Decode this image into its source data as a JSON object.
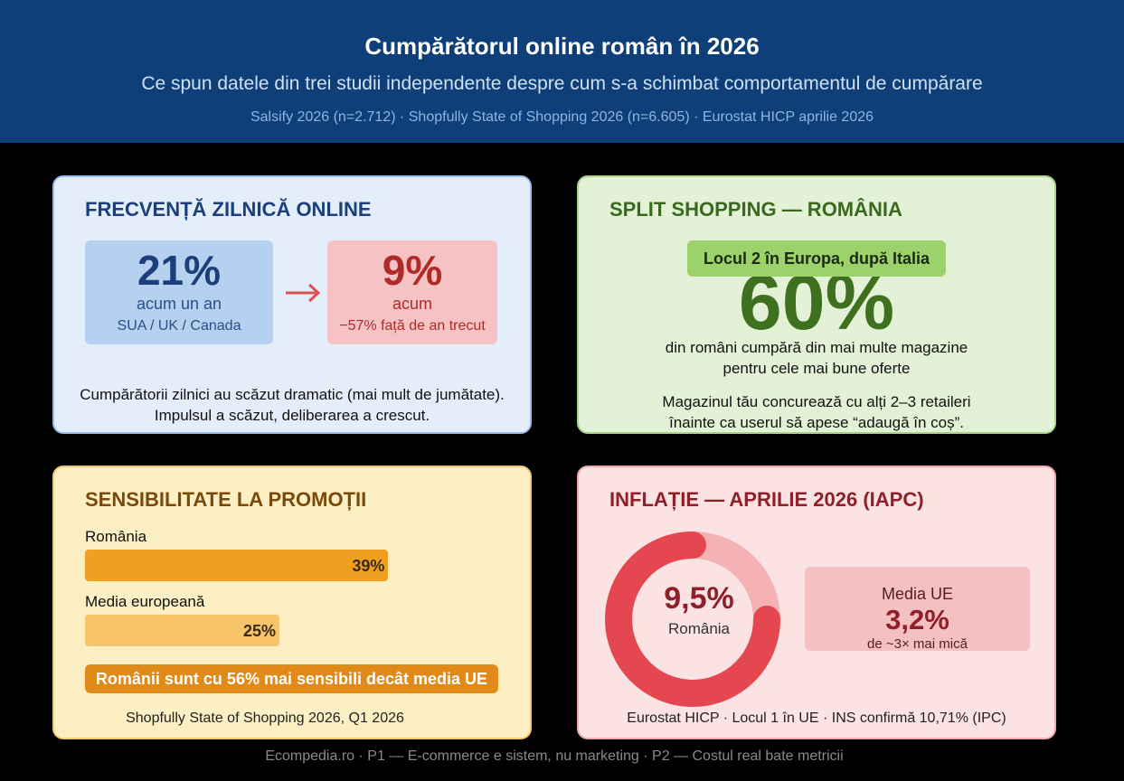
{
  "header": {
    "title": "Cumpărătorul online român în 2026",
    "subtitle": "Ce spun datele din trei studii independente despre cum s-a schimbat comportamentul de cumpărare",
    "sources": "Salsify 2026 (n=2.712) · Shopfully State of Shopping 2026 (n=6.605) · Eurostat HICP aprilie 2026"
  },
  "frequency": {
    "title": "FRECVENȚĂ ZILNICĂ ONLINE",
    "before": {
      "value": "21%",
      "label": "acum un an",
      "note": "SUA / UK / Canada"
    },
    "after": {
      "value": "9%",
      "label": "acum",
      "note": "−57% față de an trecut"
    },
    "text": [
      "Cumpărătorii zilnici au scăzut dramatic (mai mult de jumătate).",
      "Impulsul a scăzut, deliberarea a crescut."
    ]
  },
  "split": {
    "title": "SPLIT SHOPPING — ROMÂNIA",
    "badge": "Locul 2 în Europa, după Italia",
    "value": "60%",
    "text": [
      "din români cumpără din mai multe magazine",
      "pentru cele mai bune oferte"
    ],
    "note": [
      "Magazinul tău concurează cu alți 2–3 retaileri",
      "înainte ca userul să apese “adaugă în coș”."
    ]
  },
  "promo": {
    "title": "SENSIBILITATE LA PROMOȚII",
    "bars": [
      {
        "label": "România",
        "value": 39,
        "value_label": "39%"
      },
      {
        "label": "Media europeană",
        "value": 25,
        "value_label": "25%"
      }
    ],
    "callout": "Românii sunt cu 56% mai sensibili decât media UE",
    "source": "Shopfully State of Shopping 2026, Q1 2026"
  },
  "inflation": {
    "title": "INFLAȚIE — APRILIE 2026 (IAPC)",
    "value": "9,5%",
    "label": "România",
    "eu": {
      "label": "Media UE",
      "value": "3,2%",
      "note": "de ~3× mai mică"
    },
    "source": "Eurostat HICP · Locul 1 în UE · INS confirmă 10,71% (IPC)"
  },
  "footer": "Ecompedia.ro · P1 — E-commerce e sistem, nu marketing · P2 — Costul real bate metricii"
}
